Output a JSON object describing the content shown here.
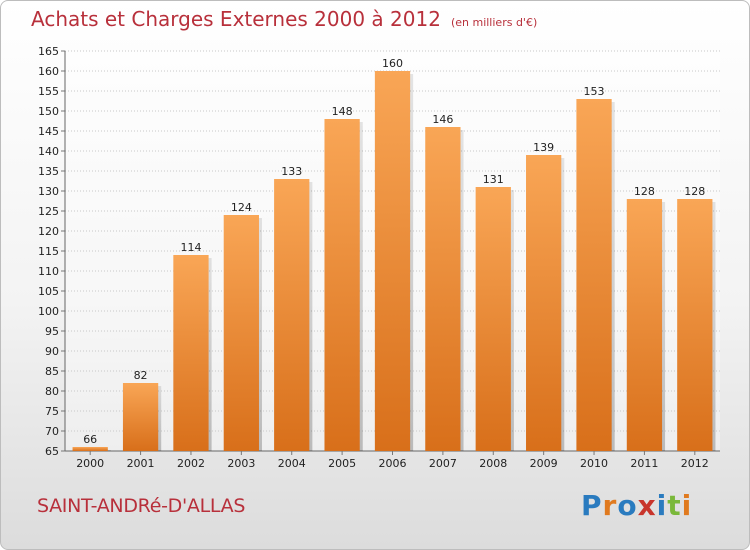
{
  "header": {
    "title": "Achats et Charges Externes 2000 à 2012",
    "unit": "(en milliers d'€)"
  },
  "footer": {
    "city": "SAINT-ANDRé-D'ALLAS",
    "brand": "Proxiti",
    "brand_letters": [
      {
        "ch": "P",
        "color": "#2a7bbf"
      },
      {
        "ch": "r",
        "color": "#e07a1f"
      },
      {
        "ch": "o",
        "color": "#2a7bbf"
      },
      {
        "ch": "x",
        "color": "#c8352c"
      },
      {
        "ch": "i",
        "color": "#2a7bbf"
      },
      {
        "ch": "t",
        "color": "#7ab83a"
      },
      {
        "ch": "i",
        "color": "#e07a1f"
      }
    ]
  },
  "colors": {
    "bar_light": "#f9a656",
    "bar_dark": "#d86f1a",
    "accent": "#b8303b",
    "grid": "#c8c8c8"
  },
  "chart_data": {
    "type": "bar",
    "title": "Achats et Charges Externes 2000 à 2012",
    "subtitle": "(en milliers d'€)",
    "categories": [
      "2000",
      "2001",
      "2002",
      "2003",
      "2004",
      "2005",
      "2006",
      "2007",
      "2008",
      "2009",
      "2010",
      "2011",
      "2012"
    ],
    "values": [
      66,
      82,
      114,
      124,
      133,
      148,
      160,
      146,
      131,
      139,
      153,
      128,
      128
    ],
    "ylim": [
      65,
      165
    ],
    "yticks": [
      65,
      70,
      75,
      80,
      85,
      90,
      95,
      100,
      105,
      110,
      115,
      120,
      125,
      130,
      135,
      140,
      145,
      150,
      155,
      160,
      165
    ],
    "grid": true
  }
}
